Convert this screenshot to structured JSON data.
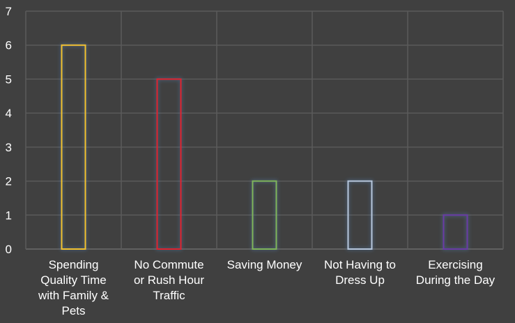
{
  "chart_data": {
    "type": "bar",
    "title": "",
    "xlabel": "",
    "ylabel": "",
    "categories": [
      "Spending Quality Time with Family & Pets",
      "No Commute or Rush Hour Traffic",
      "Saving Money",
      "Not Having to Dress Up",
      "Exercising During the Day"
    ],
    "category_lines": [
      [
        "Spending",
        "Quality Time",
        "with Family &",
        "Pets"
      ],
      [
        "No Commute",
        "or Rush Hour",
        "Traffic"
      ],
      [
        "Saving Money"
      ],
      [
        "Not Having to",
        "Dress Up"
      ],
      [
        "Exercising",
        "During the Day"
      ]
    ],
    "values": [
      6,
      5,
      2,
      2,
      1
    ],
    "bar_colors": [
      "#f2c12e",
      "#e0202e",
      "#7fb55a",
      "#b7c7dc",
      "#6b3aa6"
    ],
    "ylim": [
      0,
      7
    ],
    "yticks": [
      0,
      1,
      2,
      3,
      4,
      5,
      6,
      7
    ],
    "grid": true,
    "legend": "none"
  },
  "colors": {
    "background": "#404040",
    "gridline": "#5a5a5a",
    "text": "#ffffff",
    "glow": "#4f79a8"
  }
}
